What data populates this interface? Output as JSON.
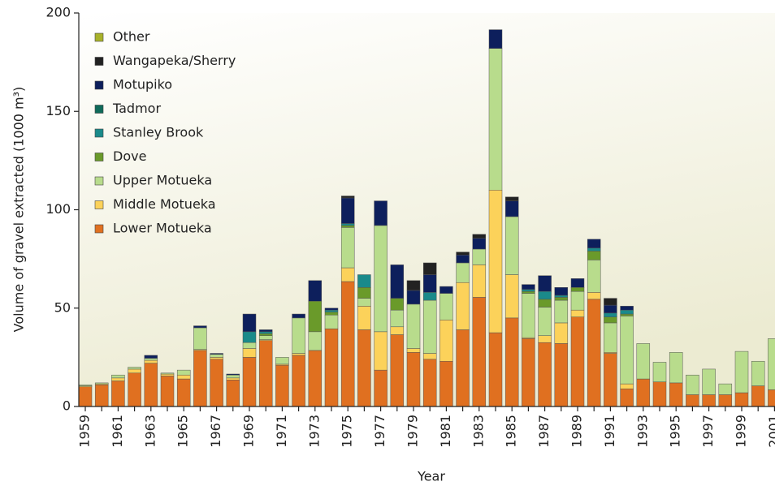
{
  "chart_data": {
    "type": "stacked_bar",
    "ylabel": "Volume of gravel extracted (1000 m³)",
    "xlabel": "Year",
    "categories": [
      "1959",
      null,
      "1961",
      null,
      "1963",
      null,
      "1965",
      null,
      "1967",
      null,
      "1969",
      null,
      "1971",
      null,
      "1973",
      null,
      "1975",
      null,
      "1977",
      null,
      "1979",
      null,
      "1981",
      null,
      "1983",
      null,
      "1985",
      null,
      "1987",
      null,
      "1989",
      null,
      "1991",
      null,
      "1993",
      null,
      "1995",
      null,
      "1997",
      null,
      "1999",
      null,
      "2001"
    ],
    "ylim": [
      0,
      200
    ],
    "yticks": [
      0,
      50,
      100,
      150,
      200
    ],
    "legend": "upper left",
    "series": [
      {
        "name": "Lower Motueka",
        "color": "#e07020",
        "values": [
          10,
          11,
          13,
          17,
          22,
          15.5,
          14,
          28.5,
          24,
          13.5,
          25,
          33.5,
          21,
          26,
          28.5,
          39.5,
          63.5,
          39,
          18.5,
          36.5,
          27.5,
          24,
          23,
          39,
          55.5,
          37.5,
          45,
          34.5,
          32.5,
          32,
          45.5,
          54.5,
          27,
          9,
          14,
          12.5,
          12,
          6,
          6,
          6,
          7,
          10.5,
          8.5
        ]
      },
      {
        "name": "Middle Motueka",
        "color": "#fcd25a",
        "values": [
          0.5,
          0.5,
          1.5,
          2,
          1.5,
          1,
          2,
          0.5,
          1,
          1,
          4.5,
          0.5,
          0.5,
          1,
          0,
          0,
          7,
          12,
          19.5,
          4,
          2,
          3,
          21,
          24,
          16.5,
          72.5,
          22,
          0.5,
          3.5,
          10.5,
          3.5,
          3.5,
          0.5,
          2.5,
          0,
          0,
          0,
          0,
          0,
          0,
          0,
          0,
          0
        ]
      },
      {
        "name": "Upper Motueka",
        "color": "#b8dc8c",
        "values": [
          0.5,
          0.5,
          1.5,
          1,
          1,
          0.5,
          2.5,
          11,
          1.5,
          1.5,
          3,
          2,
          3.5,
          18,
          9.5,
          7,
          20.5,
          4,
          54,
          8.5,
          22.5,
          27,
          13.5,
          10,
          8,
          72,
          29.5,
          22.5,
          14.5,
          11.5,
          9.5,
          16.5,
          15,
          34.5,
          18,
          10,
          15.5,
          10,
          13,
          5.5,
          21,
          12.5,
          26
        ]
      },
      {
        "name": "Dove",
        "color": "#6a9a2a",
        "values": [
          0,
          0,
          0,
          0,
          0,
          0,
          0,
          0,
          0,
          0,
          0,
          1,
          0,
          0,
          15.5,
          1.5,
          1,
          5.5,
          0,
          6,
          0,
          0,
          0,
          0,
          0,
          0,
          0,
          1,
          4,
          1.5,
          2,
          4.5,
          3,
          1,
          0,
          0,
          0,
          0,
          0,
          0,
          0,
          0,
          0
        ]
      },
      {
        "name": "Stanley Brook",
        "color": "#1a8a8a",
        "values": [
          0,
          0,
          0,
          0,
          0,
          0,
          0,
          0,
          0,
          0,
          5.5,
          1,
          0,
          0,
          0,
          1,
          1,
          6.5,
          0,
          0,
          0,
          4,
          0,
          0,
          0,
          0,
          0,
          1,
          4,
          1,
          0,
          1.5,
          2,
          2,
          0,
          0,
          0,
          0,
          0,
          0,
          0,
          0,
          0
        ]
      },
      {
        "name": "Tadmor",
        "color": "#0f6a5a",
        "values": [
          0,
          0,
          0,
          0,
          0,
          0,
          0,
          0,
          0,
          0,
          0,
          0,
          0,
          0,
          0,
          0,
          0,
          0,
          0,
          0,
          0,
          0,
          0,
          0,
          0,
          0,
          0,
          0,
          0,
          0,
          0,
          0,
          0,
          0,
          0,
          0,
          0,
          0,
          0,
          0,
          0,
          0,
          0
        ]
      },
      {
        "name": "Motupiko",
        "color": "#0d1f5c",
        "values": [
          0,
          0,
          0,
          0,
          1.5,
          0,
          0,
          1,
          0.5,
          0.5,
          9,
          1,
          0,
          2,
          10.5,
          1,
          13,
          0,
          12.5,
          17,
          7,
          9,
          3.5,
          4,
          5.5,
          9.5,
          8,
          2.5,
          8,
          4,
          4.5,
          4.5,
          4,
          2,
          0,
          0,
          0,
          0,
          0,
          0,
          0,
          0,
          0
        ]
      },
      {
        "name": "Wangapeka/Sherry",
        "color": "#222222",
        "values": [
          0,
          0,
          0,
          0,
          0,
          0,
          0,
          0,
          0,
          0,
          0,
          0,
          0,
          0,
          0,
          0,
          1,
          0,
          0,
          0,
          5,
          6,
          0,
          1.5,
          2,
          0,
          2,
          0,
          0,
          0,
          0,
          0,
          3.5,
          0,
          0,
          0,
          0,
          0,
          0,
          0,
          0,
          0,
          0
        ]
      },
      {
        "name": "Other",
        "color": "#a8b22a",
        "values": [
          0,
          0,
          0,
          0,
          0,
          0,
          0,
          0,
          0,
          0,
          0,
          0,
          0,
          0,
          0,
          0,
          0,
          0,
          0,
          0,
          0,
          0,
          0,
          0,
          0,
          0,
          0,
          0,
          0,
          0,
          0,
          0,
          0,
          0,
          0,
          0,
          0,
          0,
          0,
          0,
          0,
          0,
          0
        ]
      }
    ]
  }
}
